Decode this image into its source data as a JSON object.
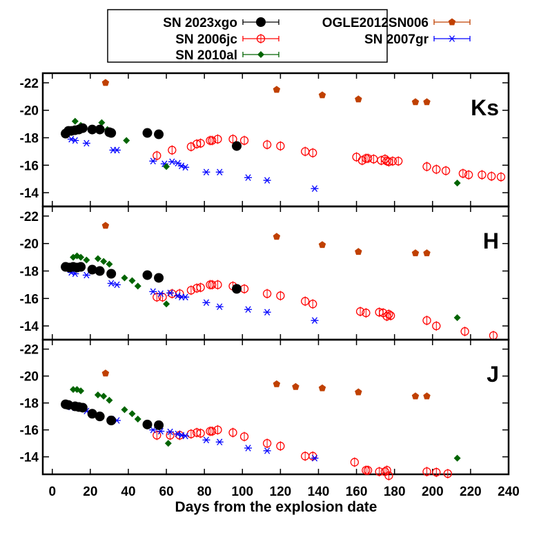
{
  "chart_data": {
    "type": "scatter",
    "xlabel": "Days from the explosion date",
    "ylabel": "",
    "xlim": [
      -5,
      240
    ],
    "x_ticks": [
      0,
      20,
      40,
      60,
      80,
      100,
      120,
      140,
      160,
      180,
      200,
      220,
      240
    ],
    "legend": {
      "placement": "top-center",
      "entries": [
        {
          "series": "SN 2023xgo",
          "col": 0,
          "row": 0
        },
        {
          "series": "OGLE2012SN006",
          "col": 1,
          "row": 0
        },
        {
          "series": "SN 2006jc",
          "col": 0,
          "row": 1
        },
        {
          "series": "SN 2007gr",
          "col": 1,
          "row": 1
        },
        {
          "series": "SN 2010al",
          "col": 0,
          "row": 2
        }
      ]
    },
    "series_styles": {
      "SN 2023xgo": {
        "marker": "filled-circle",
        "color": "#000000"
      },
      "SN 2006jc": {
        "marker": "open-circle",
        "color": "#ff0000"
      },
      "SN 2010al": {
        "marker": "filled-diamond",
        "color": "#006400"
      },
      "OGLE2012SN006": {
        "marker": "filled-pentagon",
        "color": "#c04000"
      },
      "SN 2007gr": {
        "marker": "asterisk",
        "color": "#0000ff"
      }
    },
    "panels": [
      {
        "band": "Ks",
        "ylim": [
          -13,
          -22.7
        ],
        "y_ticks": [
          -22,
          -20,
          -18,
          -16,
          -14
        ],
        "series": [
          {
            "name": "SN 2023xgo",
            "points": [
              [
                7,
                -18.3
              ],
              [
                8.5,
                -18.5
              ],
              [
                10,
                -18.5
              ],
              [
                12,
                -18.55
              ],
              [
                14,
                -18.6
              ],
              [
                16,
                -18.7
              ],
              [
                21,
                -18.6
              ],
              [
                25,
                -18.6
              ],
              [
                30,
                -18.4
              ],
              [
                31,
                -18.35
              ],
              [
                50,
                -18.35
              ],
              [
                56,
                -18.25
              ],
              [
                97,
                -17.4
              ]
            ]
          },
          {
            "name": "SN 2006jc",
            "points": [
              [
                55,
                -16.7
              ],
              [
                63,
                -17.1
              ],
              [
                73,
                -17.35
              ],
              [
                76,
                -17.55
              ],
              [
                78,
                -17.6
              ],
              [
                83,
                -17.8
              ],
              [
                84,
                -17.8
              ],
              [
                87,
                -17.9
              ],
              [
                95,
                -17.9
              ],
              [
                101,
                -17.8
              ],
              [
                113,
                -17.5
              ],
              [
                120,
                -17.4
              ],
              [
                133,
                -17.0
              ],
              [
                137,
                -16.9
              ],
              [
                160,
                -16.6
              ],
              [
                163,
                -16.35
              ],
              [
                165,
                -16.5
              ],
              [
                166,
                -16.5
              ],
              [
                169,
                -16.45
              ],
              [
                173,
                -16.35
              ],
              [
                175,
                -16.45
              ],
              [
                176,
                -16.3
              ],
              [
                177,
                -16.25
              ],
              [
                179,
                -16.3
              ],
              [
                182,
                -16.3
              ],
              [
                197,
                -15.9
              ],
              [
                202,
                -15.7
              ],
              [
                207,
                -15.6
              ],
              [
                216,
                -15.4
              ],
              [
                219,
                -15.3
              ],
              [
                226,
                -15.3
              ],
              [
                231,
                -15.2
              ],
              [
                236,
                -15.15
              ]
            ]
          },
          {
            "name": "SN 2010al",
            "points": [
              [
                9,
                -18.6
              ],
              [
                12,
                -19.2
              ],
              [
                15,
                -18.9
              ],
              [
                26,
                -19.1
              ],
              [
                29,
                -18.6
              ],
              [
                39,
                -17.8
              ],
              [
                60,
                -15.9
              ],
              [
                213,
                -14.7
              ]
            ]
          },
          {
            "name": "OGLE2012SN006",
            "points": [
              [
                28,
                -22.0
              ],
              [
                118,
                -21.5
              ],
              [
                142,
                -21.1
              ],
              [
                161,
                -20.8
              ],
              [
                191,
                -20.6
              ],
              [
                197,
                -20.6
              ]
            ]
          },
          {
            "name": "SN 2007gr",
            "points": [
              [
                10,
                -17.9
              ],
              [
                12,
                -17.8
              ],
              [
                18,
                -17.6
              ],
              [
                32,
                -17.1
              ],
              [
                34,
                -17.1
              ],
              [
                53,
                -16.3
              ],
              [
                59,
                -16.1
              ],
              [
                63,
                -16.25
              ],
              [
                66,
                -16.15
              ],
              [
                68,
                -15.95
              ],
              [
                70,
                -15.85
              ],
              [
                81,
                -15.5
              ],
              [
                88,
                -15.5
              ],
              [
                103,
                -15.1
              ],
              [
                113,
                -14.9
              ],
              [
                138,
                -14.3
              ]
            ]
          }
        ]
      },
      {
        "band": "H",
        "ylim": [
          -13,
          -22.7
        ],
        "y_ticks": [
          -22,
          -20,
          -18,
          -16,
          -14
        ],
        "series": [
          {
            "name": "SN 2023xgo",
            "points": [
              [
                7,
                -18.3
              ],
              [
                9,
                -18.25
              ],
              [
                11,
                -18.3
              ],
              [
                13,
                -18.25
              ],
              [
                15,
                -18.3
              ],
              [
                21,
                -18.1
              ],
              [
                25,
                -18.0
              ],
              [
                31,
                -17.8
              ],
              [
                50,
                -17.7
              ],
              [
                56,
                -17.5
              ],
              [
                97,
                -16.7
              ]
            ]
          },
          {
            "name": "SN 2006jc",
            "points": [
              [
                55,
                -16.1
              ],
              [
                58,
                -16.1
              ],
              [
                63,
                -16.35
              ],
              [
                67,
                -16.35
              ],
              [
                73,
                -16.6
              ],
              [
                76,
                -16.75
              ],
              [
                78,
                -16.8
              ],
              [
                83,
                -17.0
              ],
              [
                84,
                -17.0
              ],
              [
                87,
                -17.0
              ],
              [
                95,
                -16.9
              ],
              [
                101,
                -16.7
              ],
              [
                113,
                -16.35
              ],
              [
                120,
                -16.2
              ],
              [
                133,
                -15.8
              ],
              [
                137,
                -15.6
              ],
              [
                162,
                -15.05
              ],
              [
                165,
                -14.95
              ],
              [
                172,
                -15.0
              ],
              [
                174,
                -14.95
              ],
              [
                176,
                -14.7
              ],
              [
                177,
                -14.85
              ],
              [
                178,
                -14.75
              ],
              [
                197,
                -14.4
              ],
              [
                202,
                -14.0
              ],
              [
                217,
                -13.6
              ],
              [
                232,
                -13.3
              ]
            ]
          },
          {
            "name": "SN 2010al",
            "points": [
              [
                11,
                -19.0
              ],
              [
                13,
                -19.1
              ],
              [
                15,
                -19.0
              ],
              [
                18,
                -18.8
              ],
              [
                24,
                -18.9
              ],
              [
                27,
                -18.7
              ],
              [
                30,
                -18.5
              ],
              [
                38,
                -17.5
              ],
              [
                42,
                -17.3
              ],
              [
                45,
                -16.9
              ],
              [
                60,
                -15.6
              ],
              [
                213,
                -14.6
              ]
            ]
          },
          {
            "name": "OGLE2012SN006",
            "points": [
              [
                28,
                -21.3
              ],
              [
                118,
                -20.5
              ],
              [
                142,
                -19.9
              ],
              [
                161,
                -19.4
              ],
              [
                191,
                -19.3
              ],
              [
                197,
                -19.3
              ]
            ]
          },
          {
            "name": "SN 2007gr",
            "points": [
              [
                10,
                -17.9
              ],
              [
                12,
                -17.8
              ],
              [
                18,
                -17.7
              ],
              [
                31,
                -17.1
              ],
              [
                34,
                -17.0
              ],
              [
                53,
                -16.5
              ],
              [
                57,
                -16.35
              ],
              [
                62,
                -16.4
              ],
              [
                66,
                -16.2
              ],
              [
                68,
                -16.1
              ],
              [
                70,
                -16.1
              ],
              [
                81,
                -15.7
              ],
              [
                88,
                -15.4
              ],
              [
                103,
                -15.2
              ],
              [
                113,
                -15.0
              ],
              [
                138,
                -14.4
              ]
            ]
          }
        ]
      },
      {
        "band": "J",
        "ylim": [
          -12.7,
          -22.7
        ],
        "y_ticks": [
          -22,
          -20,
          -18,
          -16,
          -14
        ],
        "series": [
          {
            "name": "SN 2023xgo",
            "points": [
              [
                7,
                -17.9
              ],
              [
                8.5,
                -17.85
              ],
              [
                12,
                -17.75
              ],
              [
                14,
                -17.7
              ],
              [
                16,
                -17.65
              ],
              [
                21,
                -17.2
              ],
              [
                25,
                -17.0
              ],
              [
                31,
                -16.7
              ],
              [
                50,
                -16.4
              ],
              [
                56,
                -16.35
              ]
            ]
          },
          {
            "name": "SN 2006jc",
            "points": [
              [
                55,
                -15.6
              ],
              [
                62,
                -15.6
              ],
              [
                67,
                -15.6
              ],
              [
                73,
                -15.7
              ],
              [
                76,
                -15.8
              ],
              [
                78,
                -15.75
              ],
              [
                83,
                -15.9
              ],
              [
                84,
                -15.9
              ],
              [
                87,
                -16.0
              ],
              [
                95,
                -15.8
              ],
              [
                101,
                -15.5
              ],
              [
                113,
                -15.0
              ],
              [
                120,
                -14.8
              ],
              [
                133,
                -14.05
              ],
              [
                137,
                -14.05
              ],
              [
                159,
                -13.6
              ],
              [
                165,
                -13.0
              ],
              [
                166,
                -13.0
              ],
              [
                172,
                -12.9
              ],
              [
                175,
                -12.9
              ],
              [
                176,
                -13.0
              ],
              [
                177,
                -12.6
              ],
              [
                197,
                -12.9
              ],
              [
                202,
                -12.85
              ],
              [
                208,
                -12.75
              ]
            ]
          },
          {
            "name": "SN 2010al",
            "points": [
              [
                11,
                -19.0
              ],
              [
                13,
                -19.0
              ],
              [
                15,
                -18.9
              ],
              [
                24,
                -18.6
              ],
              [
                27,
                -18.5
              ],
              [
                30,
                -18.2
              ],
              [
                38,
                -17.5
              ],
              [
                42,
                -17.2
              ],
              [
                45,
                -16.8
              ],
              [
                61,
                -15.0
              ],
              [
                213,
                -13.9
              ]
            ]
          },
          {
            "name": "OGLE2012SN006",
            "points": [
              [
                28,
                -20.2
              ],
              [
                118,
                -19.4
              ],
              [
                128,
                -19.2
              ],
              [
                142,
                -19.1
              ],
              [
                161,
                -18.8
              ],
              [
                191,
                -18.5
              ],
              [
                197,
                -18.5
              ]
            ]
          },
          {
            "name": "SN 2007gr",
            "points": [
              [
                10,
                -17.7
              ],
              [
                12,
                -17.65
              ],
              [
                18,
                -17.4
              ],
              [
                31,
                -16.8
              ],
              [
                34,
                -16.7
              ],
              [
                53,
                -16.0
              ],
              [
                57,
                -15.9
              ],
              [
                62,
                -15.85
              ],
              [
                66,
                -15.7
              ],
              [
                68,
                -15.6
              ],
              [
                70,
                -15.55
              ],
              [
                81,
                -15.25
              ],
              [
                88,
                -15.1
              ],
              [
                103,
                -14.65
              ],
              [
                113,
                -14.45
              ],
              [
                138,
                -13.9
              ]
            ]
          }
        ]
      }
    ]
  }
}
